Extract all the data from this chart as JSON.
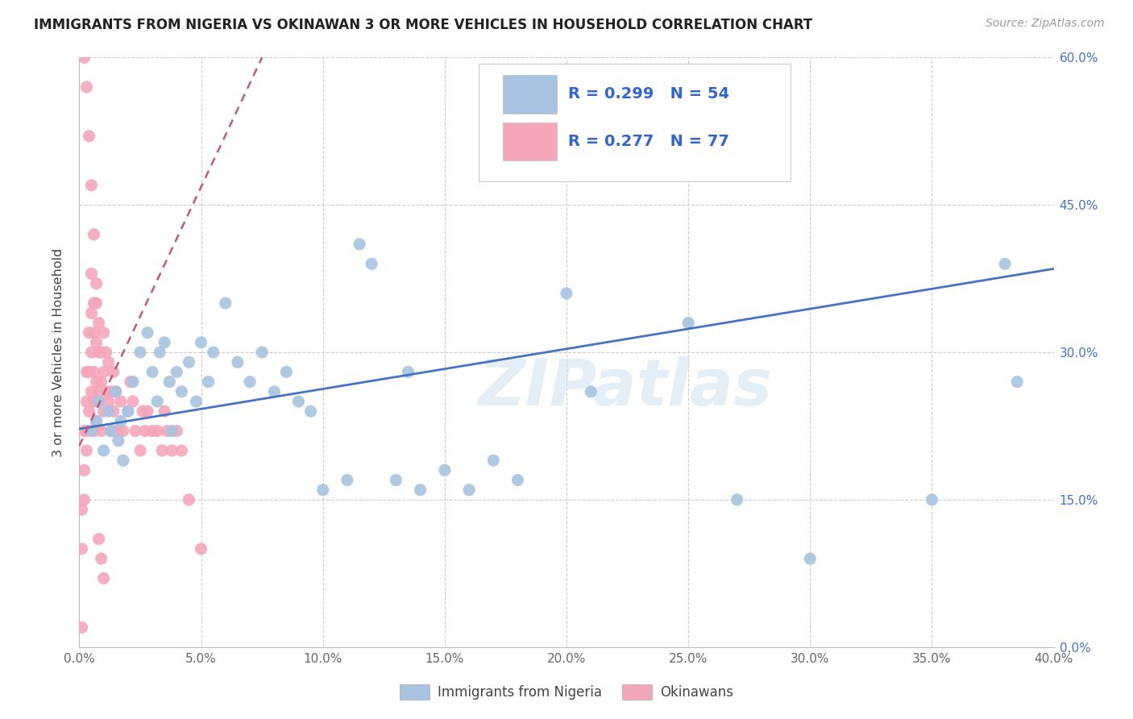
{
  "title": "IMMIGRANTS FROM NIGERIA VS OKINAWAN 3 OR MORE VEHICLES IN HOUSEHOLD CORRELATION CHART",
  "source": "Source: ZipAtlas.com",
  "ylabel": "3 or more Vehicles in Household",
  "legend1_label": "R = 0.299   N = 54",
  "legend2_label": "R = 0.277   N = 77",
  "legend1_bottom": "Immigrants from Nigeria",
  "legend2_bottom": "Okinawans",
  "watermark": "ZIPatlas",
  "xlim": [
    0.0,
    0.4
  ],
  "ylim": [
    0.0,
    0.6
  ],
  "xticks": [
    0.0,
    0.05,
    0.1,
    0.15,
    0.2,
    0.25,
    0.3,
    0.35,
    0.4
  ],
  "yticks": [
    0.0,
    0.15,
    0.3,
    0.45,
    0.6
  ],
  "xtick_labels": [
    "0.0%",
    "5.0%",
    "10.0%",
    "15.0%",
    "20.0%",
    "25.0%",
    "30.0%",
    "35.0%",
    "40.0%"
  ],
  "ytick_labels_right": [
    "0.0%",
    "15.0%",
    "30.0%",
    "45.0%",
    "60.0%"
  ],
  "blue_color": "#a8c4e0",
  "blue_line_color": "#4472c4",
  "pink_color": "#f4a7b9",
  "pink_line_color": "#c0587a",
  "blue_R": 0.299,
  "blue_N": 54,
  "pink_R": 0.277,
  "pink_N": 77,
  "blue_x": [
    0.005,
    0.007,
    0.008,
    0.01,
    0.012,
    0.013,
    0.015,
    0.016,
    0.017,
    0.018,
    0.02,
    0.022,
    0.025,
    0.028,
    0.03,
    0.032,
    0.033,
    0.035,
    0.037,
    0.038,
    0.04,
    0.042,
    0.045,
    0.048,
    0.05,
    0.053,
    0.055,
    0.06,
    0.065,
    0.07,
    0.075,
    0.08,
    0.085,
    0.09,
    0.095,
    0.1,
    0.11,
    0.115,
    0.12,
    0.13,
    0.135,
    0.14,
    0.15,
    0.16,
    0.17,
    0.18,
    0.2,
    0.21,
    0.25,
    0.27,
    0.3,
    0.35,
    0.38,
    0.385
  ],
  "blue_y": [
    0.22,
    0.23,
    0.25,
    0.2,
    0.24,
    0.22,
    0.26,
    0.21,
    0.23,
    0.19,
    0.24,
    0.27,
    0.3,
    0.32,
    0.28,
    0.25,
    0.3,
    0.31,
    0.27,
    0.22,
    0.28,
    0.26,
    0.29,
    0.25,
    0.31,
    0.27,
    0.3,
    0.35,
    0.29,
    0.27,
    0.3,
    0.26,
    0.28,
    0.25,
    0.24,
    0.16,
    0.17,
    0.41,
    0.39,
    0.17,
    0.28,
    0.16,
    0.18,
    0.16,
    0.19,
    0.17,
    0.36,
    0.26,
    0.33,
    0.15,
    0.09,
    0.15,
    0.39,
    0.27
  ],
  "pink_x": [
    0.001,
    0.001,
    0.001,
    0.002,
    0.002,
    0.002,
    0.003,
    0.003,
    0.003,
    0.003,
    0.004,
    0.004,
    0.004,
    0.005,
    0.005,
    0.005,
    0.005,
    0.005,
    0.006,
    0.006,
    0.006,
    0.006,
    0.006,
    0.007,
    0.007,
    0.007,
    0.007,
    0.008,
    0.008,
    0.008,
    0.008,
    0.009,
    0.009,
    0.009,
    0.01,
    0.01,
    0.01,
    0.011,
    0.011,
    0.012,
    0.012,
    0.013,
    0.013,
    0.014,
    0.014,
    0.015,
    0.015,
    0.016,
    0.017,
    0.018,
    0.02,
    0.021,
    0.022,
    0.023,
    0.025,
    0.026,
    0.027,
    0.028,
    0.03,
    0.032,
    0.034,
    0.035,
    0.036,
    0.038,
    0.04,
    0.042,
    0.045,
    0.05,
    0.003,
    0.004,
    0.005,
    0.006,
    0.007,
    0.008,
    0.009,
    0.01,
    0.002
  ],
  "pink_y": [
    0.02,
    0.1,
    0.14,
    0.18,
    0.22,
    0.15,
    0.2,
    0.25,
    0.22,
    0.28,
    0.24,
    0.28,
    0.32,
    0.22,
    0.26,
    0.3,
    0.34,
    0.38,
    0.25,
    0.28,
    0.32,
    0.35,
    0.22,
    0.27,
    0.31,
    0.35,
    0.23,
    0.26,
    0.3,
    0.33,
    0.25,
    0.22,
    0.27,
    0.3,
    0.24,
    0.28,
    0.32,
    0.26,
    0.3,
    0.25,
    0.29,
    0.22,
    0.26,
    0.24,
    0.28,
    0.22,
    0.26,
    0.22,
    0.25,
    0.22,
    0.24,
    0.27,
    0.25,
    0.22,
    0.2,
    0.24,
    0.22,
    0.24,
    0.22,
    0.22,
    0.2,
    0.24,
    0.22,
    0.2,
    0.22,
    0.2,
    0.15,
    0.1,
    0.57,
    0.52,
    0.47,
    0.42,
    0.37,
    0.11,
    0.09,
    0.07,
    0.6
  ]
}
